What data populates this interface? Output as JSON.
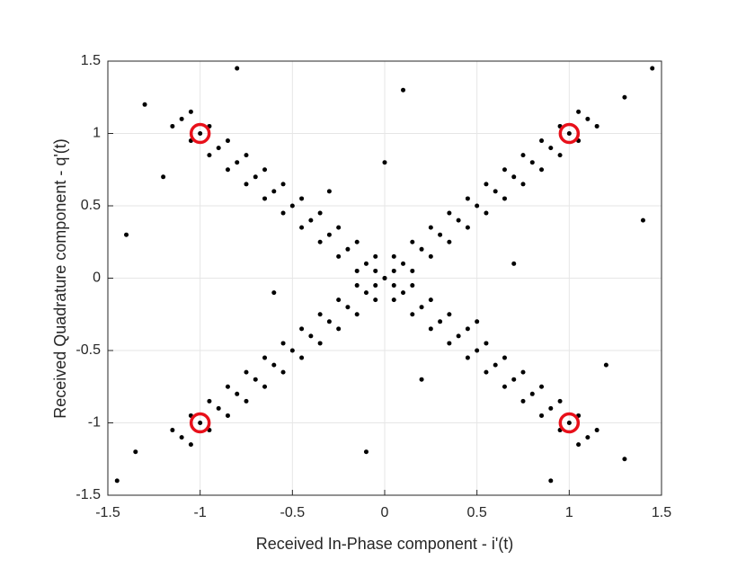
{
  "chart_data": {
    "type": "scatter",
    "xlabel": "Received In-Phase component - i'(t)",
    "ylabel": "Received Quadrature component - q'(t)",
    "xlim": [
      -1.5,
      1.5
    ],
    "ylim": [
      -1.5,
      1.5
    ],
    "xticks": [
      -1.5,
      -1,
      -0.5,
      0,
      0.5,
      1,
      1.5
    ],
    "yticks": [
      -1.5,
      -1,
      -0.5,
      0,
      0.5,
      1,
      1.5
    ],
    "grid": true,
    "series": [
      {
        "color": "#000000",
        "marker": "dot",
        "x": [
          -1.05,
          -0.95,
          -0.85,
          -0.75,
          -0.65,
          -0.55,
          -0.45,
          -0.35,
          -0.25,
          -0.15,
          -0.05,
          0.05,
          0.15,
          0.25,
          0.35,
          0.45,
          0.55,
          0.65,
          0.75,
          0.85,
          0.95,
          1.05,
          1.15,
          -1.15,
          -1.05,
          -0.95,
          -0.85,
          -0.75,
          -0.65,
          -0.55,
          -0.45,
          -0.35,
          -0.25,
          -0.15,
          -0.05,
          0.05,
          0.15,
          0.25,
          0.35,
          0.45,
          0.55,
          0.65,
          0.75,
          0.85,
          0.95,
          1.05,
          -1.1,
          -1,
          -0.9,
          -0.8,
          -0.7,
          -0.6,
          -0.5,
          -0.4,
          -0.3,
          -0.2,
          -0.1,
          0,
          0.1,
          0.2,
          0.3,
          0.4,
          0.5,
          0.6,
          0.7,
          0.8,
          0.9,
          1,
          1.1,
          -1.05,
          -0.95,
          -0.85,
          -0.75,
          -0.65,
          -0.55,
          -0.45,
          -0.35,
          -0.25,
          -0.15,
          -0.05,
          0.05,
          0.15,
          0.25,
          0.35,
          0.45,
          0.55,
          0.65,
          0.75,
          0.85,
          0.95,
          1.05,
          1.15,
          -1.15,
          -1.05,
          -0.95,
          -0.85,
          -0.75,
          -0.65,
          -0.55,
          -0.45,
          -0.35,
          -0.25,
          -0.15,
          -0.05,
          0.05,
          0.15,
          0.25,
          0.35,
          0.45,
          0.55,
          0.65,
          0.75,
          0.85,
          0.95,
          1.05,
          -1.1,
          -1,
          -0.9,
          -0.8,
          -0.7,
          -0.6,
          -0.5,
          -0.4,
          -0.3,
          -0.2,
          -0.1,
          0,
          0.1,
          0.2,
          0.3,
          0.4,
          0.5,
          0.6,
          0.7,
          0.8,
          0.9,
          1,
          1.1,
          -1.3,
          1.3,
          -1.35,
          1.3,
          0,
          0.2,
          -0.3,
          0.5,
          -1.4,
          1.4,
          0.9,
          -0.8,
          1.2,
          -1.2,
          0.1,
          -0.1,
          0.7,
          -0.6,
          1.45,
          -1.45
        ],
        "y": [
          -1.15,
          -1.05,
          -0.95,
          -0.85,
          -0.75,
          -0.65,
          -0.55,
          -0.45,
          -0.35,
          -0.25,
          -0.15,
          -0.05,
          0.05,
          0.15,
          0.25,
          0.35,
          0.45,
          0.55,
          0.65,
          0.75,
          0.85,
          0.95,
          1.05,
          -1.05,
          -0.95,
          -0.85,
          -0.75,
          -0.65,
          -0.55,
          -0.45,
          -0.35,
          -0.25,
          -0.15,
          -0.05,
          0.05,
          0.15,
          0.25,
          0.35,
          0.45,
          0.55,
          0.65,
          0.75,
          0.85,
          0.95,
          1.05,
          1.15,
          -1.1,
          -1,
          -0.9,
          -0.8,
          -0.7,
          -0.6,
          -0.5,
          -0.4,
          -0.3,
          -0.2,
          -0.1,
          0,
          0.1,
          0.2,
          0.3,
          0.4,
          0.5,
          0.6,
          0.7,
          0.8,
          0.9,
          1,
          1.1,
          1.15,
          1.05,
          0.95,
          0.85,
          0.75,
          0.65,
          0.55,
          0.45,
          0.35,
          0.25,
          0.15,
          0.05,
          -0.05,
          -0.15,
          -0.25,
          -0.35,
          -0.45,
          -0.55,
          -0.65,
          -0.75,
          -0.85,
          -0.95,
          -1.05,
          1.05,
          0.95,
          0.85,
          0.75,
          0.65,
          0.55,
          0.45,
          0.35,
          0.25,
          0.15,
          0.05,
          -0.05,
          -0.15,
          -0.25,
          -0.35,
          -0.45,
          -0.55,
          -0.65,
          -0.75,
          -0.85,
          -0.95,
          -1.05,
          -1.15,
          1.1,
          1,
          0.9,
          0.8,
          0.7,
          0.6,
          0.5,
          0.4,
          0.3,
          0.2,
          0.1,
          0,
          -0.1,
          -0.2,
          -0.3,
          -0.4,
          -0.5,
          -0.6,
          -0.7,
          -0.8,
          -0.9,
          -1,
          -1.1,
          1.2,
          1.25,
          -1.2,
          -1.25,
          0.8,
          -0.7,
          0.6,
          -0.3,
          0.3,
          0.4,
          -1.4,
          1.45,
          -0.6,
          0.7,
          1.3,
          -1.2,
          0.1,
          -0.1,
          1.45,
          -1.4
        ]
      },
      {
        "color": "#e8101a",
        "marker": "ring",
        "x": [
          -1,
          1,
          -1,
          1
        ],
        "y": [
          1,
          1,
          -1,
          -1
        ]
      }
    ]
  }
}
